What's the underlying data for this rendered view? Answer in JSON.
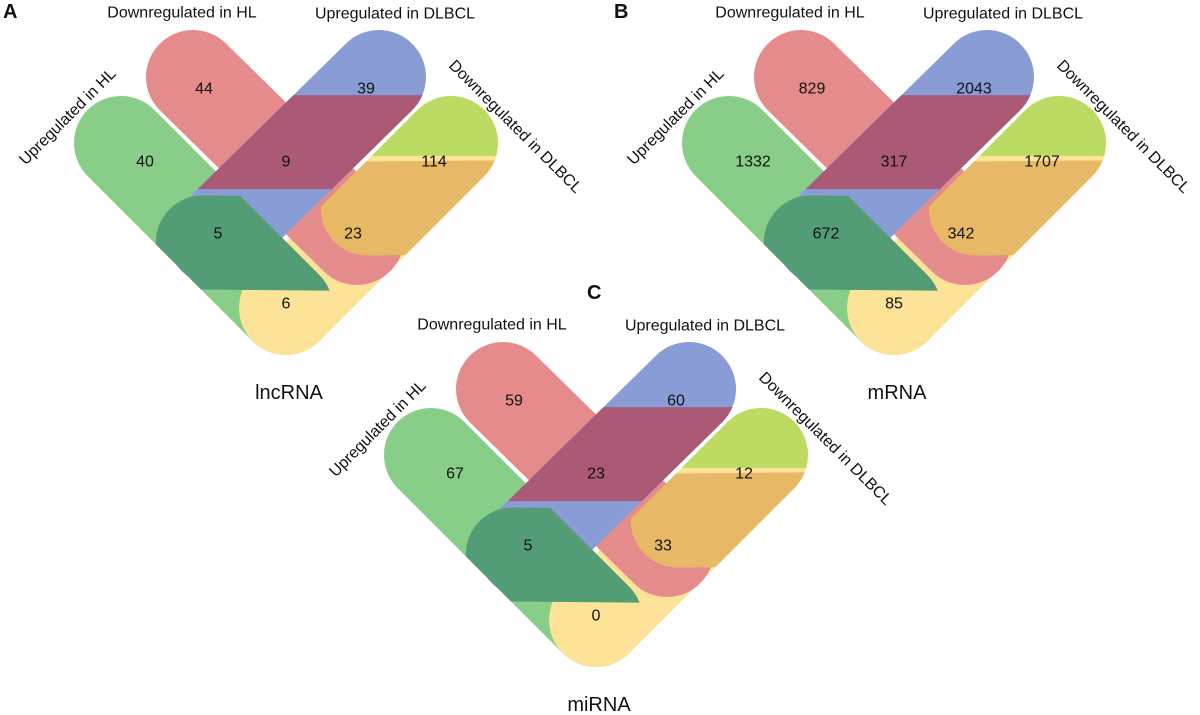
{
  "colors": {
    "up_hl": "#88ce88",
    "down_hl": "#e68b8b",
    "up_dlbcl": "#8a9cd6",
    "down_dlbcl": "#fde397",
    "down_hl_up_dlbcl": "#aa5a77",
    "up_hl_up_dlbcl": "#529d75",
    "down_hl_down_dlbcl": "#e7b866",
    "up_hl_down_dlbcl": "#bcdb62"
  },
  "panels": [
    {
      "letter": "A",
      "title": "lncRNA",
      "set_labels": {
        "up_hl": "Upregulated in HL",
        "down_hl": "Downregulated in HL",
        "up_dlbcl": "Upregulated in DLBCL",
        "down_dlbcl": "Downregulated in DLBCL"
      },
      "regions": {
        "down_hl": "44",
        "up_dlbcl": "39",
        "up_hl": "40",
        "down_hl_up_dlbcl": "9",
        "down_dlbcl": "114",
        "up_hl_up_dlbcl": "5",
        "down_hl_down_dlbcl": "23",
        "up_hl_down_dlbcl": "6"
      }
    },
    {
      "letter": "B",
      "title": "mRNA",
      "set_labels": {
        "up_hl": "Upregulated in HL",
        "down_hl": "Downregulated in HL",
        "up_dlbcl": "Upregulated in DLBCL",
        "down_dlbcl": "Downregulated in DLBCL"
      },
      "regions": {
        "down_hl": "829",
        "up_dlbcl": "2043",
        "up_hl": "1332",
        "down_hl_up_dlbcl": "317",
        "down_dlbcl": "1707",
        "up_hl_up_dlbcl": "672",
        "down_hl_down_dlbcl": "342",
        "up_hl_down_dlbcl": "85"
      }
    },
    {
      "letter": "C",
      "title": "miRNA",
      "set_labels": {
        "up_hl": "Upregulated in HL",
        "down_hl": "Downregulated in HL",
        "up_dlbcl": "Upregulated in DLBCL",
        "down_dlbcl": "Downregulated in DLBCL"
      },
      "regions": {
        "down_hl": "59",
        "up_dlbcl": "60",
        "up_hl": "67",
        "down_hl_up_dlbcl": "23",
        "down_dlbcl": "12",
        "up_hl_up_dlbcl": "5",
        "down_hl_down_dlbcl": "33",
        "up_hl_down_dlbcl": "0"
      }
    }
  ]
}
